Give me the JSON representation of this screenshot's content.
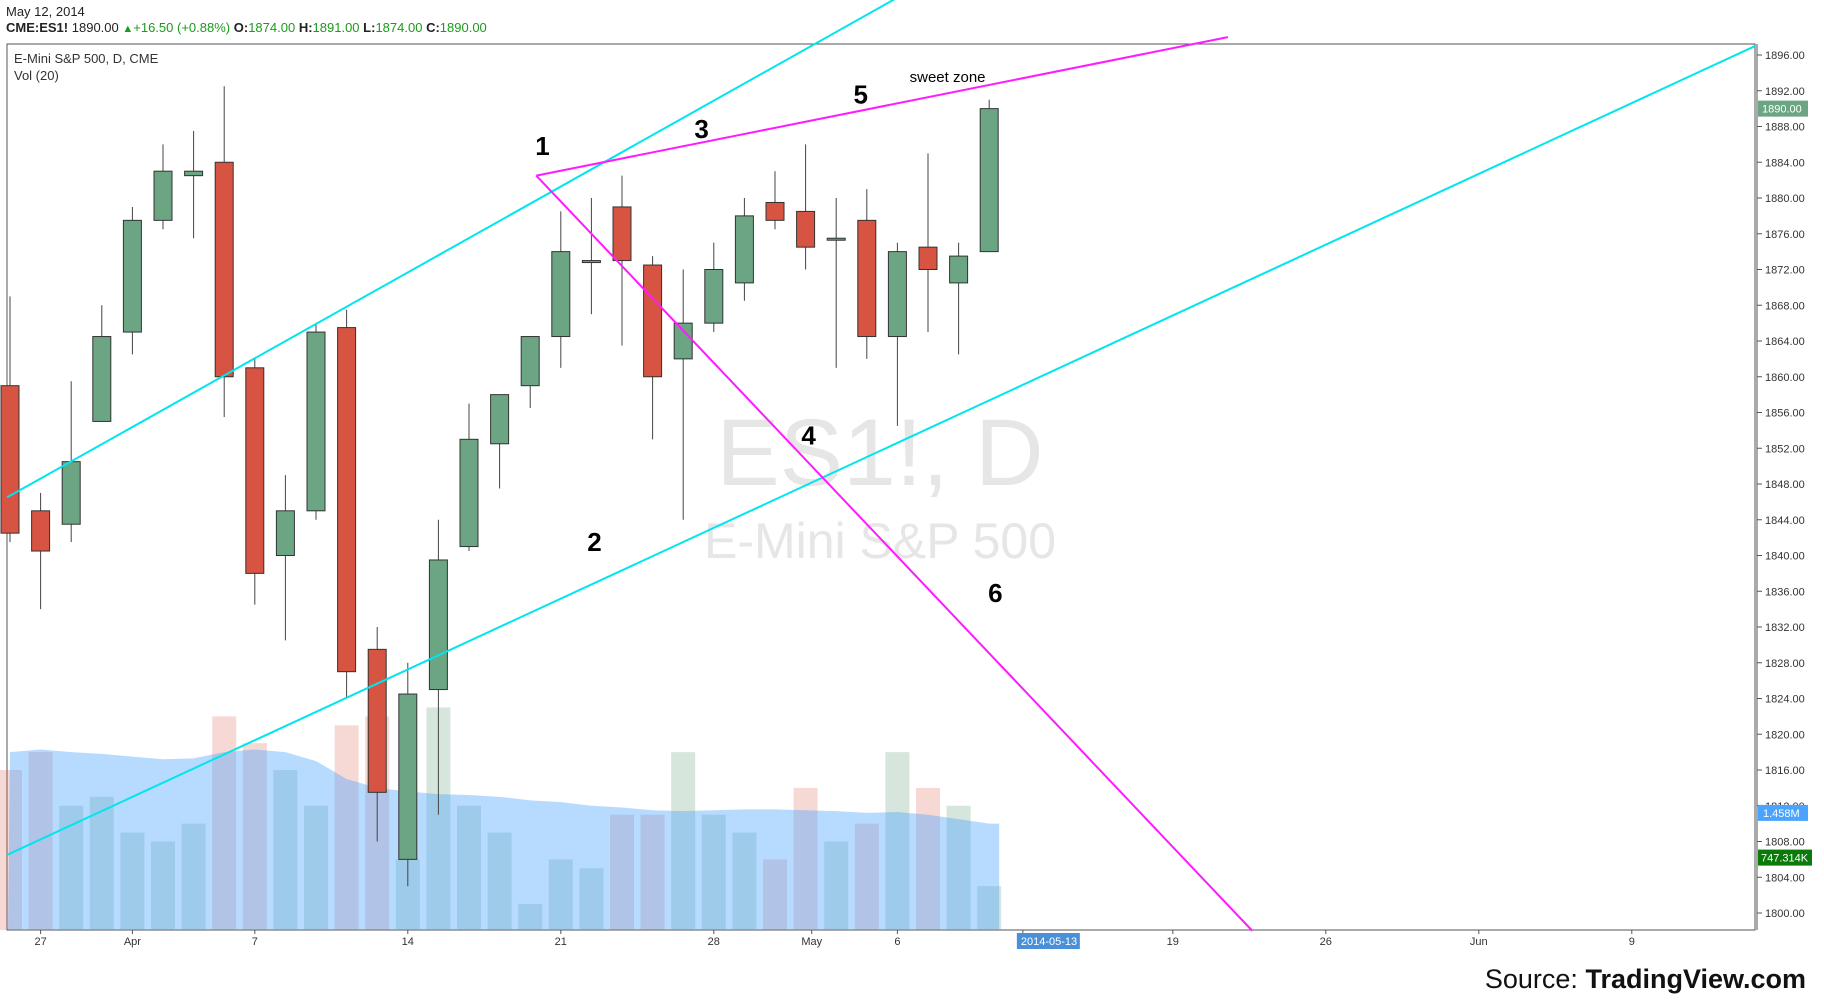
{
  "header": {
    "date": "May 12, 2014",
    "symbol": "CME:ES1!",
    "last": "1890.00",
    "change": "+16.50 (+0.88%)",
    "o_label": "O:",
    "o_val": "1874.00",
    "h_label": "H:",
    "h_val": "1891.00",
    "l_label": "L:",
    "l_val": "1874.00",
    "c_label": "C:",
    "c_val": "1890.00"
  },
  "legend": {
    "title": "E-Mini S&P 500, D, CME",
    "vol": "Vol (20)"
  },
  "watermark": {
    "line1": "ES1!, D",
    "line2": "E-Mini S&P 500"
  },
  "source": {
    "prefix": "Source: ",
    "name": "TradingView.com"
  },
  "chart_data": {
    "type": "candlestick",
    "colors": {
      "up": "#6ba583",
      "down": "#d75442",
      "channel": "#00e5ee",
      "wedge": "#ff1aff",
      "bg": "#ffffff",
      "price_tag": "#6ba583",
      "vol_tag": "#0a7a0a",
      "vol_ma_tag": "#4aa3ff",
      "date_tag": "#4a90d9"
    },
    "y_axis": {
      "min": 1798,
      "max": 1898,
      "ticks": [
        1896,
        1892,
        1888,
        1884,
        1880,
        1876,
        1872,
        1868,
        1864,
        1860,
        1856,
        1852,
        1848,
        1844,
        1840,
        1836,
        1832,
        1828,
        1824,
        1820,
        1816,
        1812,
        1808,
        1804,
        1800
      ]
    },
    "x_axis": {
      "labels": [
        "27",
        "Apr",
        "7",
        "14",
        "21",
        "28",
        "May",
        "6",
        "1",
        "19",
        "26",
        "Jun",
        "9"
      ]
    },
    "candles": [
      {
        "o": 1859.0,
        "h": 1869.0,
        "l": 1841.5,
        "c": 1842.5
      },
      {
        "o": 1845.0,
        "h": 1847.0,
        "l": 1834.0,
        "c": 1840.5
      },
      {
        "o": 1843.5,
        "h": 1859.5,
        "l": 1841.5,
        "c": 1850.5
      },
      {
        "o": 1855.0,
        "h": 1868.0,
        "l": 1855.0,
        "c": 1864.5
      },
      {
        "o": 1865.0,
        "h": 1879.0,
        "l": 1862.5,
        "c": 1877.5
      },
      {
        "o": 1877.5,
        "h": 1886.0,
        "l": 1876.5,
        "c": 1883.0
      },
      {
        "o": 1882.5,
        "h": 1887.5,
        "l": 1875.5,
        "c": 1883.0
      },
      {
        "o": 1884.0,
        "h": 1892.5,
        "l": 1855.5,
        "c": 1860.0
      },
      {
        "o": 1861.0,
        "h": 1862.0,
        "l": 1834.5,
        "c": 1838.0
      },
      {
        "o": 1840.0,
        "h": 1849.0,
        "l": 1830.5,
        "c": 1845.0
      },
      {
        "o": 1845.0,
        "h": 1866.0,
        "l": 1844.0,
        "c": 1865.0
      },
      {
        "o": 1865.5,
        "h": 1867.5,
        "l": 1824.0,
        "c": 1827.0
      },
      {
        "o": 1829.5,
        "h": 1832.0,
        "l": 1808.0,
        "c": 1813.5
      },
      {
        "o": 1806.0,
        "h": 1828.0,
        "l": 1803.0,
        "c": 1824.5
      },
      {
        "o": 1825.0,
        "h": 1844.0,
        "l": 1811.0,
        "c": 1839.5
      },
      {
        "o": 1841.0,
        "h": 1857.0,
        "l": 1840.5,
        "c": 1853.0
      },
      {
        "o": 1852.5,
        "h": 1858.0,
        "l": 1847.5,
        "c": 1858.0
      },
      {
        "o": 1859.0,
        "h": 1863.5,
        "l": 1856.5,
        "c": 1864.5
      },
      {
        "o": 1864.5,
        "h": 1878.5,
        "l": 1861.0,
        "c": 1874.0
      },
      {
        "o": 1873.0,
        "h": 1880.0,
        "l": 1867.0,
        "c": 1873.0
      },
      {
        "o": 1879.0,
        "h": 1882.5,
        "l": 1863.5,
        "c": 1873.0
      },
      {
        "o": 1872.5,
        "h": 1873.5,
        "l": 1853.0,
        "c": 1860.0
      },
      {
        "o": 1862.0,
        "h": 1872.0,
        "l": 1844.0,
        "c": 1866.0
      },
      {
        "o": 1866.0,
        "h": 1875.0,
        "l": 1865.0,
        "c": 1872.0
      },
      {
        "o": 1870.5,
        "h": 1880.0,
        "l": 1868.5,
        "c": 1878.0
      },
      {
        "o": 1879.5,
        "h": 1883.0,
        "l": 1876.5,
        "c": 1877.5
      },
      {
        "o": 1878.5,
        "h": 1886.0,
        "l": 1872.0,
        "c": 1874.5
      },
      {
        "o": 1875.5,
        "h": 1880.0,
        "l": 1861.0,
        "c": 1875.5
      },
      {
        "o": 1877.5,
        "h": 1881.0,
        "l": 1862.0,
        "c": 1864.5
      },
      {
        "o": 1864.5,
        "h": 1875.0,
        "l": 1854.5,
        "c": 1874.0
      },
      {
        "o": 1874.5,
        "h": 1885.0,
        "l": 1865.0,
        "c": 1872.0
      },
      {
        "o": 1870.5,
        "h": 1875.0,
        "l": 1862.5,
        "c": 1873.5
      },
      {
        "o": 1874.0,
        "h": 1891.0,
        "l": 1874.0,
        "c": 1890.0
      }
    ],
    "volume": {
      "bars": [
        1816,
        1818,
        1812,
        1813,
        1809,
        1808,
        1810,
        1822,
        1819,
        1816,
        1812,
        1821,
        1822,
        1806,
        1823,
        1812,
        1809,
        1801,
        1806,
        1805,
        1811,
        1811,
        1818,
        1811,
        1809,
        1806,
        1814,
        1808,
        1810,
        1818,
        1814,
        1812,
        1803
      ],
      "ma": [
        1818,
        1818.3,
        1818,
        1817.8,
        1817.5,
        1817.2,
        1817.3,
        1818,
        1818.3,
        1818,
        1817,
        1815,
        1814,
        1813.6,
        1813.3,
        1813.2,
        1813,
        1812.6,
        1812.4,
        1812,
        1811.8,
        1811.5,
        1811.4,
        1811.5,
        1811.6,
        1811.6,
        1811.5,
        1811.4,
        1811.2,
        1811.3,
        1811,
        1810.5,
        1810
      ],
      "vol_tag": "747.314K",
      "ma_tag": "1.458M"
    },
    "price_tag": "1890.00",
    "date_tag": "2014-05-13",
    "annotations": [
      "1",
      "2",
      "3",
      "4",
      "5",
      "6",
      "sweet zone"
    ]
  }
}
